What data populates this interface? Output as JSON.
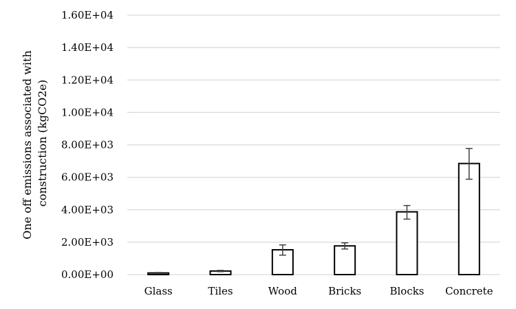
{
  "chart_data": {
    "type": "bar",
    "categories": [
      "Glass",
      "Tiles",
      "Wood",
      "Bricks",
      "Blocks",
      "Concrete"
    ],
    "values": [
      100,
      220,
      1530,
      1770,
      3870,
      6850
    ],
    "error_low": [
      70,
      180,
      1200,
      1580,
      3420,
      5880
    ],
    "error_high": [
      130,
      260,
      1830,
      1960,
      4260,
      7780
    ],
    "ylabel_lines": [
      "One off emissions associated with",
      "construction (kgCO2e)"
    ],
    "xlabel": "",
    "ylim": [
      0,
      16000
    ],
    "yticks": [
      0,
      2000,
      4000,
      6000,
      8000,
      10000,
      12000,
      14000,
      16000
    ],
    "ytick_labels": [
      "0.00E+00",
      "2.00E+03",
      "4.00E+03",
      "6.00E+03",
      "8.00E+03",
      "1.00E+04",
      "1.20E+04",
      "1.40E+04",
      "1.60E+04"
    ],
    "grid": true,
    "legend": "none",
    "colors": {
      "bar_fill": "#ffffff",
      "bar_stroke": "#000000",
      "grid": "#d9d9d9",
      "error_bar": "#404040"
    }
  }
}
